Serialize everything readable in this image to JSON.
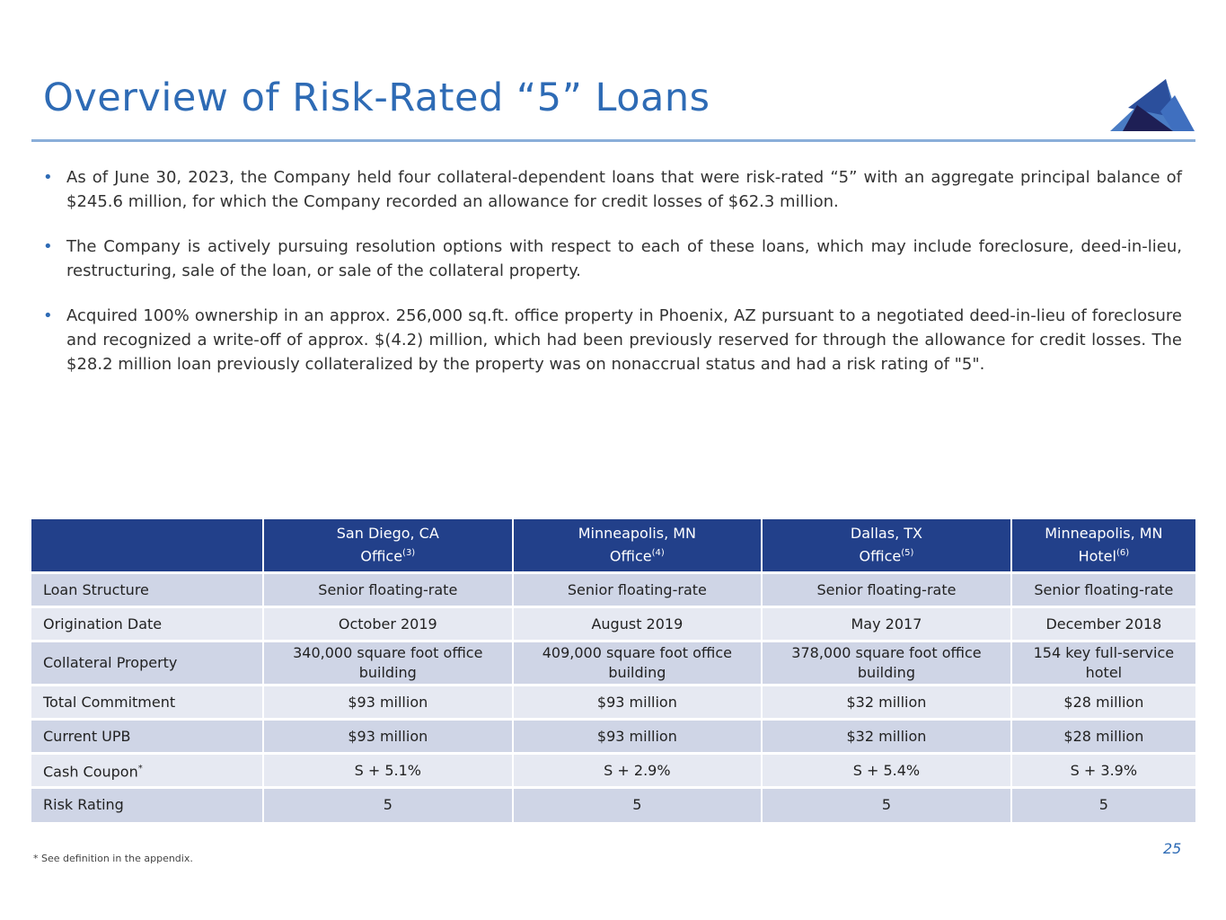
{
  "title": "Overview of Risk-Rated “5” Loans",
  "bullets": [
    "As of June 30, 2023, the Company held four collateral-dependent loans that were risk-rated “5” with an aggregate principal balance of $245.6 million, for which the Company recorded an allowance for credit losses of $62.3 million.",
    "The Company is actively pursuing resolution options with respect to each of these loans, which may include foreclosure, deed-in-lieu, restructuring, sale of the loan, or sale of the collateral property.",
    "Acquired 100% ownership in an approx. 256,000 sq.ft. office property in Phoenix, AZ pursuant to a negotiated deed-in-lieu of foreclosure and recognized a write-off of approx. $(4.2) million, which had been previously reserved for through the allowance for credit losses. The $28.2 million loan previously collateralized by the property was on nonaccrual status and had a risk rating of \"5\"."
  ],
  "bullet_marker": "•",
  "table": {
    "columns": [
      {
        "city": "San Diego, CA",
        "type": "Office",
        "note": "(3)"
      },
      {
        "city": "Minneapolis, MN",
        "type": "Office",
        "note": "(4)"
      },
      {
        "city": "Dallas, TX",
        "type": "Office",
        "note": "(5)"
      },
      {
        "city": "Minneapolis, MN",
        "type": "Hotel",
        "note": "(6)"
      }
    ],
    "rows": [
      {
        "label": "Loan Structure",
        "values": [
          "Senior floating-rate",
          "Senior floating-rate",
          "Senior floating-rate",
          "Senior floating-rate"
        ]
      },
      {
        "label": "Origination Date",
        "values": [
          "October 2019",
          "August 2019",
          "May 2017",
          "December 2018"
        ]
      },
      {
        "label": "Collateral Property",
        "values": [
          "340,000 square foot office building",
          "409,000 square foot office building",
          "378,000 square foot office building",
          "154 key full-service hotel"
        ]
      },
      {
        "label": "Total Commitment",
        "values": [
          "$93 million",
          "$93 million",
          "$32 million",
          "$28 million"
        ]
      },
      {
        "label": "Current UPB",
        "values": [
          "$93 million",
          "$93 million",
          "$32 million",
          "$28 million"
        ]
      },
      {
        "label": "Cash Coupon",
        "note": "*",
        "values": [
          "S + 5.1%",
          "S + 2.9%",
          "S + 5.4%",
          "S + 3.9%"
        ]
      },
      {
        "label": "Risk Rating",
        "values": [
          "5",
          "5",
          "5",
          "5"
        ]
      }
    ]
  },
  "footnote": "* See definition in the appendix.",
  "page_number": "25",
  "colors": {
    "title": "#2e6bb5",
    "header": "#22408a",
    "row_dark": "#cfd5e6",
    "row_light": "#e6e9f2"
  }
}
